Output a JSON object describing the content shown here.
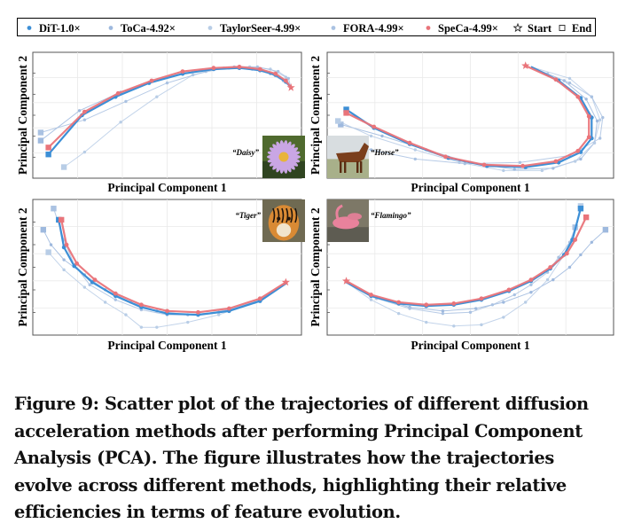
{
  "legend": [
    {
      "name": "DiT-1.0×",
      "color": "#3c8fd6",
      "marker": "dot"
    },
    {
      "name": "ToCa-4.92×",
      "color": "#9eb9de",
      "marker": "dot"
    },
    {
      "name": "TaylorSeer-4.99×",
      "color": "#b8cde6",
      "marker": "dot"
    },
    {
      "name": "FORA-4.99×",
      "color": "#aac2e2",
      "marker": "dot"
    },
    {
      "name": "SpeCa-4.99×",
      "color": "#e9747a",
      "marker": "dot"
    },
    {
      "name": "Start",
      "marker": "star"
    },
    {
      "name": "End",
      "marker": "square"
    }
  ],
  "xlabel": "Principal Component 1",
  "ylabel": "Principal Component 2",
  "panels": [
    {
      "label": "“Daisy”",
      "image": "daisy-photo"
    },
    {
      "label": "“Horse”",
      "image": "horse-photo"
    },
    {
      "label": "“Tiger”",
      "image": "tiger-photo"
    },
    {
      "label": "“Flamingo”",
      "image": "flamingo-photo"
    }
  ],
  "caption": "Figure 9: Scatter plot of the trajectories of different diffusion\nacceleration methods after performing Principal Component\nAnalysis (PCA). The figure illustrates how the trajectories\nevolve across different methods, highlighting their relative\nefficiencies in terms of feature evolution.",
  "chart_data": [
    {
      "type": "scatter",
      "subject": "Daisy",
      "xlabel": "Principal Component 1",
      "ylabel": "Principal Component 2",
      "xlim": [
        0,
        1
      ],
      "ylim": [
        0,
        1
      ],
      "grid": true,
      "legend_position": "top",
      "series": [
        {
          "name": "DiT-1.0×",
          "color": "#3c8fd6",
          "x": [
            0.98,
            0.96,
            0.92,
            0.86,
            0.78,
            0.68,
            0.56,
            0.43,
            0.3,
            0.17,
            0.04
          ],
          "y": [
            0.74,
            0.79,
            0.85,
            0.89,
            0.91,
            0.9,
            0.86,
            0.78,
            0.66,
            0.5,
            0.16
          ]
        },
        {
          "name": "ToCa-4.92×",
          "color": "#9eb9de",
          "x": [
            0.98,
            0.95,
            0.9,
            0.83,
            0.74,
            0.63,
            0.48,
            0.32,
            0.16,
            0.01
          ],
          "y": [
            0.74,
            0.8,
            0.86,
            0.9,
            0.91,
            0.89,
            0.82,
            0.7,
            0.54,
            0.28
          ]
        },
        {
          "name": "TaylorSeer-4.99×",
          "color": "#b8cde6",
          "x": [
            0.98,
            0.96,
            0.9,
            0.82,
            0.72,
            0.6,
            0.46,
            0.32,
            0.18,
            0.1
          ],
          "y": [
            0.74,
            0.83,
            0.9,
            0.92,
            0.91,
            0.85,
            0.66,
            0.44,
            0.18,
            0.05
          ]
        },
        {
          "name": "FORA-4.99×",
          "color": "#aac2e2",
          "x": [
            0.98,
            0.97,
            0.93,
            0.85,
            0.76,
            0.65,
            0.5,
            0.34,
            0.18,
            0.01
          ],
          "y": [
            0.74,
            0.82,
            0.88,
            0.92,
            0.92,
            0.88,
            0.78,
            0.62,
            0.46,
            0.35
          ]
        },
        {
          "name": "SpeCa-4.99×",
          "color": "#e9747a",
          "x": [
            0.98,
            0.96,
            0.92,
            0.86,
            0.78,
            0.68,
            0.56,
            0.44,
            0.31,
            0.18,
            0.04
          ],
          "y": [
            0.74,
            0.8,
            0.86,
            0.9,
            0.92,
            0.91,
            0.88,
            0.8,
            0.69,
            0.53,
            0.22
          ]
        }
      ]
    },
    {
      "type": "scatter",
      "subject": "Horse",
      "xlabel": "Principal Component 1",
      "ylabel": "Principal Component 2",
      "xlim": [
        0,
        1
      ],
      "ylim": [
        0,
        1
      ],
      "grid": true,
      "series": [
        {
          "name": "DiT-1.0×",
          "color": "#3c8fd6",
          "x": [
            0.72,
            0.82,
            0.9,
            0.94,
            0.94,
            0.9,
            0.82,
            0.7,
            0.56,
            0.42,
            0.28,
            0.15,
            0.05
          ],
          "y": [
            0.92,
            0.8,
            0.65,
            0.48,
            0.3,
            0.18,
            0.09,
            0.05,
            0.06,
            0.13,
            0.25,
            0.39,
            0.55
          ]
        },
        {
          "name": "ToCa-4.92×",
          "color": "#9eb9de",
          "x": [
            0.72,
            0.84,
            0.92,
            0.96,
            0.95,
            0.9,
            0.8,
            0.66,
            0.5,
            0.34,
            0.18,
            0.03
          ],
          "y": [
            0.92,
            0.8,
            0.64,
            0.45,
            0.26,
            0.12,
            0.04,
            0.03,
            0.09,
            0.2,
            0.32,
            0.42
          ]
        },
        {
          "name": "TaylorSeer-4.99×",
          "color": "#b8cde6",
          "x": [
            0.72,
            0.86,
            0.94,
            0.97,
            0.95,
            0.88,
            0.76,
            0.62,
            0.46,
            0.3,
            0.14,
            0.02
          ],
          "y": [
            0.92,
            0.82,
            0.66,
            0.46,
            0.26,
            0.1,
            0.02,
            0.02,
            0.09,
            0.2,
            0.32,
            0.45
          ]
        },
        {
          "name": "FORA-4.99×",
          "color": "#aac2e2",
          "x": [
            0.72,
            0.78,
            0.86,
            0.94,
            0.98,
            0.97,
            0.86,
            0.68,
            0.48,
            0.3,
            0.14,
            0.03
          ],
          "y": [
            0.92,
            0.86,
            0.78,
            0.66,
            0.48,
            0.3,
            0.15,
            0.09,
            0.08,
            0.12,
            0.2,
            0.28
          ]
        },
        {
          "name": "SpeCa-4.99×",
          "color": "#e9747a",
          "x": [
            0.7,
            0.81,
            0.89,
            0.93,
            0.93,
            0.89,
            0.81,
            0.69,
            0.55,
            0.41,
            0.28,
            0.15,
            0.05
          ],
          "y": [
            0.93,
            0.81,
            0.66,
            0.49,
            0.31,
            0.19,
            0.1,
            0.06,
            0.07,
            0.14,
            0.26,
            0.4,
            0.52
          ]
        }
      ]
    },
    {
      "type": "scatter",
      "subject": "Tiger",
      "xlabel": "Principal Component 1",
      "ylabel": "Principal Component 2",
      "xlim": [
        0,
        1
      ],
      "ylim": [
        0,
        1
      ],
      "grid": true,
      "series": [
        {
          "name": "DiT-1.0×",
          "color": "#3c8fd6",
          "x": [
            0.96,
            0.86,
            0.74,
            0.62,
            0.5,
            0.4,
            0.3,
            0.21,
            0.14,
            0.1,
            0.08
          ],
          "y": [
            0.37,
            0.23,
            0.15,
            0.12,
            0.13,
            0.18,
            0.27,
            0.38,
            0.51,
            0.66,
            0.88
          ]
        },
        {
          "name": "ToCa-4.92×",
          "color": "#9eb9de",
          "x": [
            0.96,
            0.84,
            0.7,
            0.58,
            0.46,
            0.36,
            0.26,
            0.18,
            0.1,
            0.05,
            0.02
          ],
          "y": [
            0.37,
            0.22,
            0.14,
            0.12,
            0.15,
            0.22,
            0.32,
            0.44,
            0.56,
            0.68,
            0.8
          ]
        },
        {
          "name": "TaylorSeer-4.99×",
          "color": "#b8cde6",
          "x": [
            0.96,
            0.84,
            0.7,
            0.58,
            0.46,
            0.4,
            0.34,
            0.26,
            0.18,
            0.1,
            0.04
          ],
          "y": [
            0.37,
            0.22,
            0.12,
            0.06,
            0.02,
            0.02,
            0.12,
            0.22,
            0.34,
            0.48,
            0.62
          ]
        },
        {
          "name": "FORA-4.99×",
          "color": "#aac2e2",
          "x": [
            0.96,
            0.86,
            0.74,
            0.62,
            0.5,
            0.4,
            0.3,
            0.2,
            0.14,
            0.1,
            0.06
          ],
          "y": [
            0.37,
            0.24,
            0.16,
            0.12,
            0.12,
            0.16,
            0.24,
            0.36,
            0.52,
            0.72,
            0.97
          ]
        },
        {
          "name": "SpeCa-4.99×",
          "color": "#e9747a",
          "x": [
            0.96,
            0.86,
            0.74,
            0.62,
            0.5,
            0.4,
            0.3,
            0.22,
            0.15,
            0.11,
            0.09
          ],
          "y": [
            0.38,
            0.25,
            0.17,
            0.14,
            0.15,
            0.2,
            0.29,
            0.4,
            0.53,
            0.68,
            0.88
          ]
        }
      ]
    },
    {
      "type": "scatter",
      "subject": "Flamingo",
      "xlabel": "Principal Component 1",
      "ylabel": "Principal Component 2",
      "xlim": [
        0,
        1
      ],
      "ylim": [
        0,
        1
      ],
      "grid": true,
      "series": [
        {
          "name": "DiT-1.0×",
          "color": "#3c8fd6",
          "x": [
            0.05,
            0.14,
            0.24,
            0.34,
            0.44,
            0.54,
            0.64,
            0.72,
            0.79,
            0.84,
            0.87,
            0.9
          ],
          "y": [
            0.38,
            0.27,
            0.21,
            0.19,
            0.2,
            0.24,
            0.31,
            0.39,
            0.49,
            0.6,
            0.72,
            0.97
          ]
        },
        {
          "name": "ToCa-4.92×",
          "color": "#9eb9de",
          "x": [
            0.05,
            0.16,
            0.28,
            0.4,
            0.52,
            0.62,
            0.72,
            0.8,
            0.86,
            0.9,
            0.94,
            0.99
          ],
          "y": [
            0.38,
            0.26,
            0.18,
            0.15,
            0.17,
            0.22,
            0.3,
            0.4,
            0.5,
            0.6,
            0.7,
            0.8
          ]
        },
        {
          "name": "TaylorSeer-4.99×",
          "color": "#b8cde6",
          "x": [
            0.05,
            0.14,
            0.24,
            0.34,
            0.44,
            0.54,
            0.62,
            0.7,
            0.78,
            0.84,
            0.88,
            0.9
          ],
          "y": [
            0.38,
            0.24,
            0.13,
            0.06,
            0.03,
            0.04,
            0.1,
            0.22,
            0.4,
            0.6,
            0.8,
            0.99
          ]
        },
        {
          "name": "FORA-4.99×",
          "color": "#aac2e2",
          "x": [
            0.05,
            0.16,
            0.28,
            0.4,
            0.5,
            0.58,
            0.66,
            0.72,
            0.78,
            0.82,
            0.86,
            0.88
          ],
          "y": [
            0.38,
            0.25,
            0.17,
            0.13,
            0.14,
            0.2,
            0.28,
            0.36,
            0.46,
            0.58,
            0.7,
            0.82
          ]
        },
        {
          "name": "SpeCa-4.99×",
          "color": "#e9747a",
          "x": [
            0.05,
            0.14,
            0.24,
            0.34,
            0.44,
            0.54,
            0.64,
            0.72,
            0.79,
            0.85,
            0.88,
            0.92
          ],
          "y": [
            0.39,
            0.28,
            0.22,
            0.2,
            0.21,
            0.25,
            0.32,
            0.4,
            0.5,
            0.61,
            0.72,
            0.9
          ]
        }
      ]
    }
  ]
}
